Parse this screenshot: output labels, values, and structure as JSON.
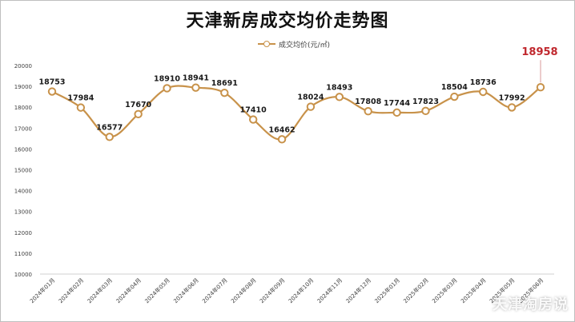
{
  "chart_data": {
    "type": "line",
    "title": "天津新房成交均价走势图",
    "legend": "成交均价(元/㎡)",
    "legend_placement": "top-center",
    "categories": [
      "2024年01月",
      "2024年02月",
      "2024年03月",
      "2024年04月",
      "2024年05月",
      "2024年06月",
      "2024年07月",
      "2024年08月",
      "2024年09月",
      "2024年10月",
      "2024年11月",
      "2024年12月",
      "2025年01月",
      "2025年02月",
      "2025年03月",
      "2025年04月",
      "2025年05月",
      "2025年06月"
    ],
    "series": [
      {
        "name": "成交均价(元/㎡)",
        "values": [
          18753,
          17984,
          16577,
          17670,
          18910,
          18941,
          18691,
          17410,
          16462,
          18024,
          18493,
          17808,
          17744,
          17823,
          18504,
          18736,
          17992,
          18958
        ]
      }
    ],
    "ylim": [
      10000,
      20000
    ],
    "yticks": [
      10000,
      11000,
      12000,
      13000,
      14000,
      15000,
      16000,
      17000,
      18000,
      19000,
      20000
    ],
    "grid": false,
    "line_color": "#c8924a",
    "highlight_color": "#c0282e",
    "highlight_index": 17
  },
  "watermark": "天津淘房说"
}
